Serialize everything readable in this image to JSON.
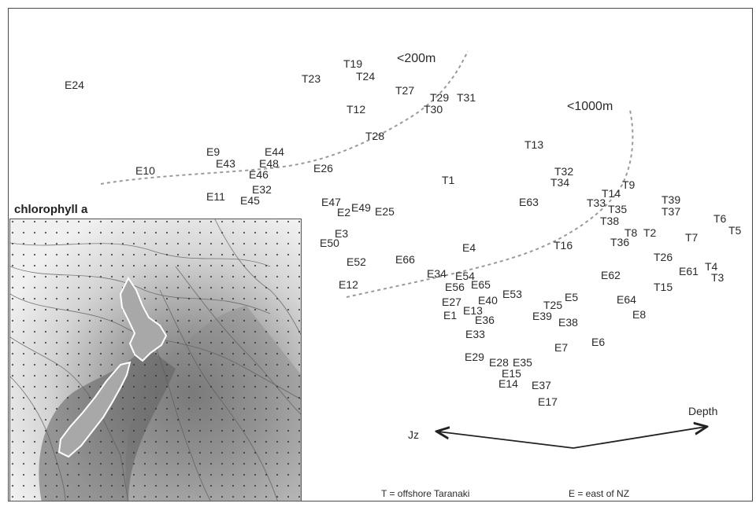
{
  "inset": {
    "title": "chlorophyll a"
  },
  "depth_labels": {
    "shallow": "<200m",
    "deep": "<1000m"
  },
  "axes": {
    "left": "Jz",
    "right": "Depth"
  },
  "legend": {
    "t": "T = offshore Taranaki",
    "e": "E = east of NZ"
  },
  "stations": [
    {
      "id": "E24"
    },
    {
      "id": "T19"
    },
    {
      "id": "T23"
    },
    {
      "id": "T24"
    },
    {
      "id": "T27"
    },
    {
      "id": "T29"
    },
    {
      "id": "T31"
    },
    {
      "id": "T30"
    },
    {
      "id": "T12"
    },
    {
      "id": "T28"
    },
    {
      "id": "T13"
    },
    {
      "id": "E9"
    },
    {
      "id": "E44"
    },
    {
      "id": "E43"
    },
    {
      "id": "E48"
    },
    {
      "id": "E10"
    },
    {
      "id": "E46"
    },
    {
      "id": "E26"
    },
    {
      "id": "E32"
    },
    {
      "id": "E11"
    },
    {
      "id": "E45"
    },
    {
      "id": "T1"
    },
    {
      "id": "T32"
    },
    {
      "id": "T34"
    },
    {
      "id": "T9"
    },
    {
      "id": "T14"
    },
    {
      "id": "E63"
    },
    {
      "id": "T33"
    },
    {
      "id": "T35"
    },
    {
      "id": "T39"
    },
    {
      "id": "T37"
    },
    {
      "id": "E47"
    },
    {
      "id": "E49"
    },
    {
      "id": "E2"
    },
    {
      "id": "E25"
    },
    {
      "id": "T38"
    },
    {
      "id": "T6"
    },
    {
      "id": "T8"
    },
    {
      "id": "T2"
    },
    {
      "id": "T5"
    },
    {
      "id": "E3"
    },
    {
      "id": "T7"
    },
    {
      "id": "E50"
    },
    {
      "id": "T36"
    },
    {
      "id": "E4"
    },
    {
      "id": "T16"
    },
    {
      "id": "E66"
    },
    {
      "id": "E52"
    },
    {
      "id": "T26"
    },
    {
      "id": "T4"
    },
    {
      "id": "E61"
    },
    {
      "id": "T3"
    },
    {
      "id": "E34"
    },
    {
      "id": "E62"
    },
    {
      "id": "E54"
    },
    {
      "id": "E12"
    },
    {
      "id": "E56"
    },
    {
      "id": "E65"
    },
    {
      "id": "T15"
    },
    {
      "id": "E53"
    },
    {
      "id": "E27"
    },
    {
      "id": "E40"
    },
    {
      "id": "E5"
    },
    {
      "id": "E64"
    },
    {
      "id": "T25"
    },
    {
      "id": "E1"
    },
    {
      "id": "E13"
    },
    {
      "id": "E39"
    },
    {
      "id": "E36"
    },
    {
      "id": "E38"
    },
    {
      "id": "E8"
    },
    {
      "id": "E33"
    },
    {
      "id": "E6"
    },
    {
      "id": "E7"
    },
    {
      "id": "E29"
    },
    {
      "id": "E28"
    },
    {
      "id": "E35"
    },
    {
      "id": "E15"
    },
    {
      "id": "E14"
    },
    {
      "id": "E37"
    },
    {
      "id": "E17"
    }
  ],
  "colors": {
    "text": "#2a2a2a",
    "frame": "#4a4a4a",
    "dashed": "#9a9a9a",
    "ocean_shallow": "#f2f2f2",
    "ocean_deep": "#7a7a7a",
    "land": "#a8a8a8",
    "coast": "#ffffff"
  }
}
